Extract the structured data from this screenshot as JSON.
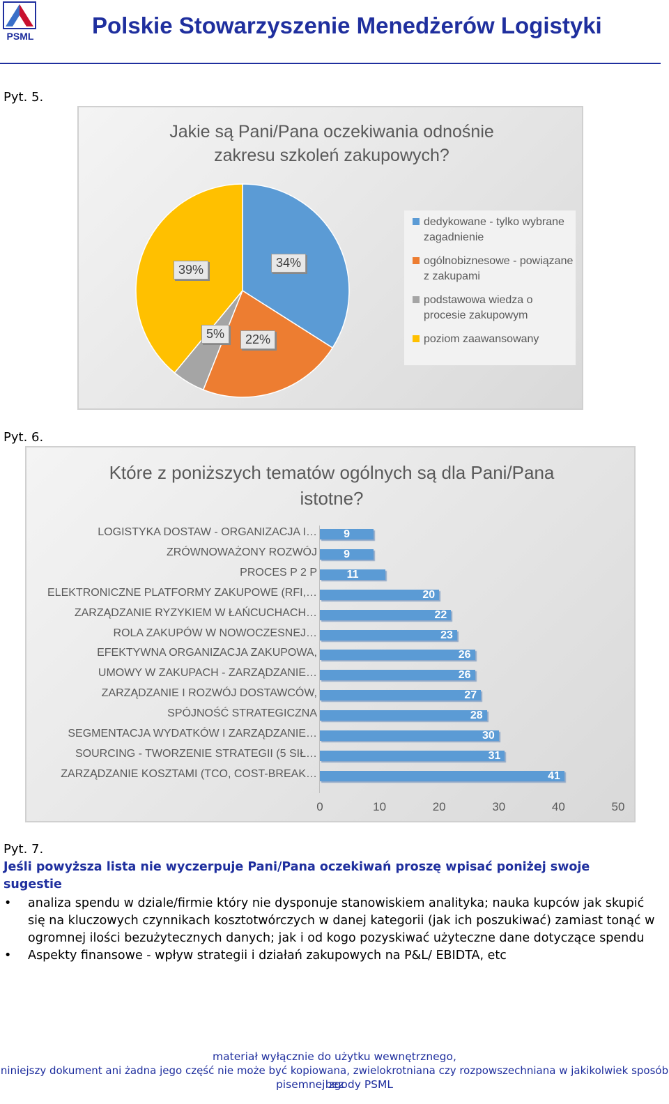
{
  "header": {
    "logo_text": "PSML",
    "title": "Polskie Stowarzyszenie Menedżerów Logistyki"
  },
  "q5": {
    "label": "Pyt. 5.",
    "chart_data": {
      "type": "pie",
      "title": "Jakie są Pani/Pana oczekiwania odnośnie zakresu szkoleń zakupowych?",
      "title_line1": "Jakie są Pani/Pana oczekiwania odnośnie",
      "title_line2": "zakresu szkoleń zakupowych?",
      "legend_position": "right",
      "slices": [
        {
          "name": "dedykowane - tylko wybrane zagadnienie",
          "value": 34,
          "label": "34%",
          "color": "#5b9bd5"
        },
        {
          "name": "ogólnobiznesowe - powiązane z zakupami",
          "value": 22,
          "label": "22%",
          "color": "#ed7d31"
        },
        {
          "name": "podstawowa wiedza o procesie zakupowym",
          "value": 5,
          "label": "5%",
          "color": "#a5a5a5"
        },
        {
          "name": "poziom zaawansowany",
          "value": 39,
          "label": "39%",
          "color": "#ffc000"
        }
      ]
    }
  },
  "q6": {
    "label": "Pyt. 6.",
    "chart_data": {
      "type": "bar",
      "orientation": "horizontal",
      "title": "Które z poniższych tematów ogólnych są dla Pani/Pana istotne?",
      "title_line1": "Które z poniższych tematów ogólnych są dla Pani/Pana",
      "title_line2": "istotne?",
      "xlim": [
        0,
        50
      ],
      "xticks": [
        "0",
        "10",
        "20",
        "30",
        "40",
        "50"
      ],
      "xtick_values": [
        0,
        10,
        20,
        30,
        40,
        50
      ],
      "bar_color": "#5b9bd5",
      "categories": [
        "LOGISTYKA DOSTAW - ORGANIZACJA I…",
        "ZRÓWNOWAŻONY ROZWÓJ",
        "PROCES P 2 P",
        "ELEKTRONICZNE PLATFORMY ZAKUPOWE (RFI,…",
        "ZARZĄDZANIE RYZYKIEM W ŁAŃCUCHACH…",
        "ROLA ZAKUPÓW W NOWOCZESNEJ…",
        "EFEKTYWNA ORGANIZACJA ZAKUPOWA,",
        "UMOWY W ZAKUPACH - ZARZĄDZANIE…",
        "ZARZĄDZANIE I ROZWÓJ DOSTAWCÓW,",
        "SPÓJNOŚĆ STRATEGICZNA",
        "SEGMENTACJA WYDATKÓW I ZARZĄDZANIE…",
        "SOURCING  - TWORZENIE STRATEGII (5 SIŁ…",
        "ZARZĄDZANIE KOSZTAMI (TCO, COST-BREAK…"
      ],
      "values": [
        9,
        9,
        11,
        20,
        22,
        23,
        26,
        26,
        27,
        28,
        30,
        31,
        41
      ]
    }
  },
  "q7": {
    "label": "Pyt. 7.",
    "heading": "Jeśli powyższa lista nie wyczerpuje Pani/Pana oczekiwań proszę wpisać poniżej swoje sugestie",
    "bullets": [
      "analiza spendu w dziale/firmie który nie dysponuje stanowiskiem analityka; nauka kupców jak skupić się na kluczowych czynnikach kosztotwórczych w danej kategorii (jak ich poszukiwać) zamiast tonąć w ogromnej ilości bezużytecznych danych; jak i od kogo pozyskiwać użyteczne dane dotyczące spendu",
      "Aspekty finansowe - wpływ strategii i działań zakupowych na P&L/ EBIDTA, etc"
    ]
  },
  "footer": {
    "line1": "materiał wyłącznie do użytku wewnętrznego,",
    "line2": "niniejszy dokument ani żadna jego część nie może być kopiowana, zwielokrotniana czy rozpowszechniana w jakikolwiek sposób bez",
    "line3": "pisemnej zgody PSML"
  }
}
